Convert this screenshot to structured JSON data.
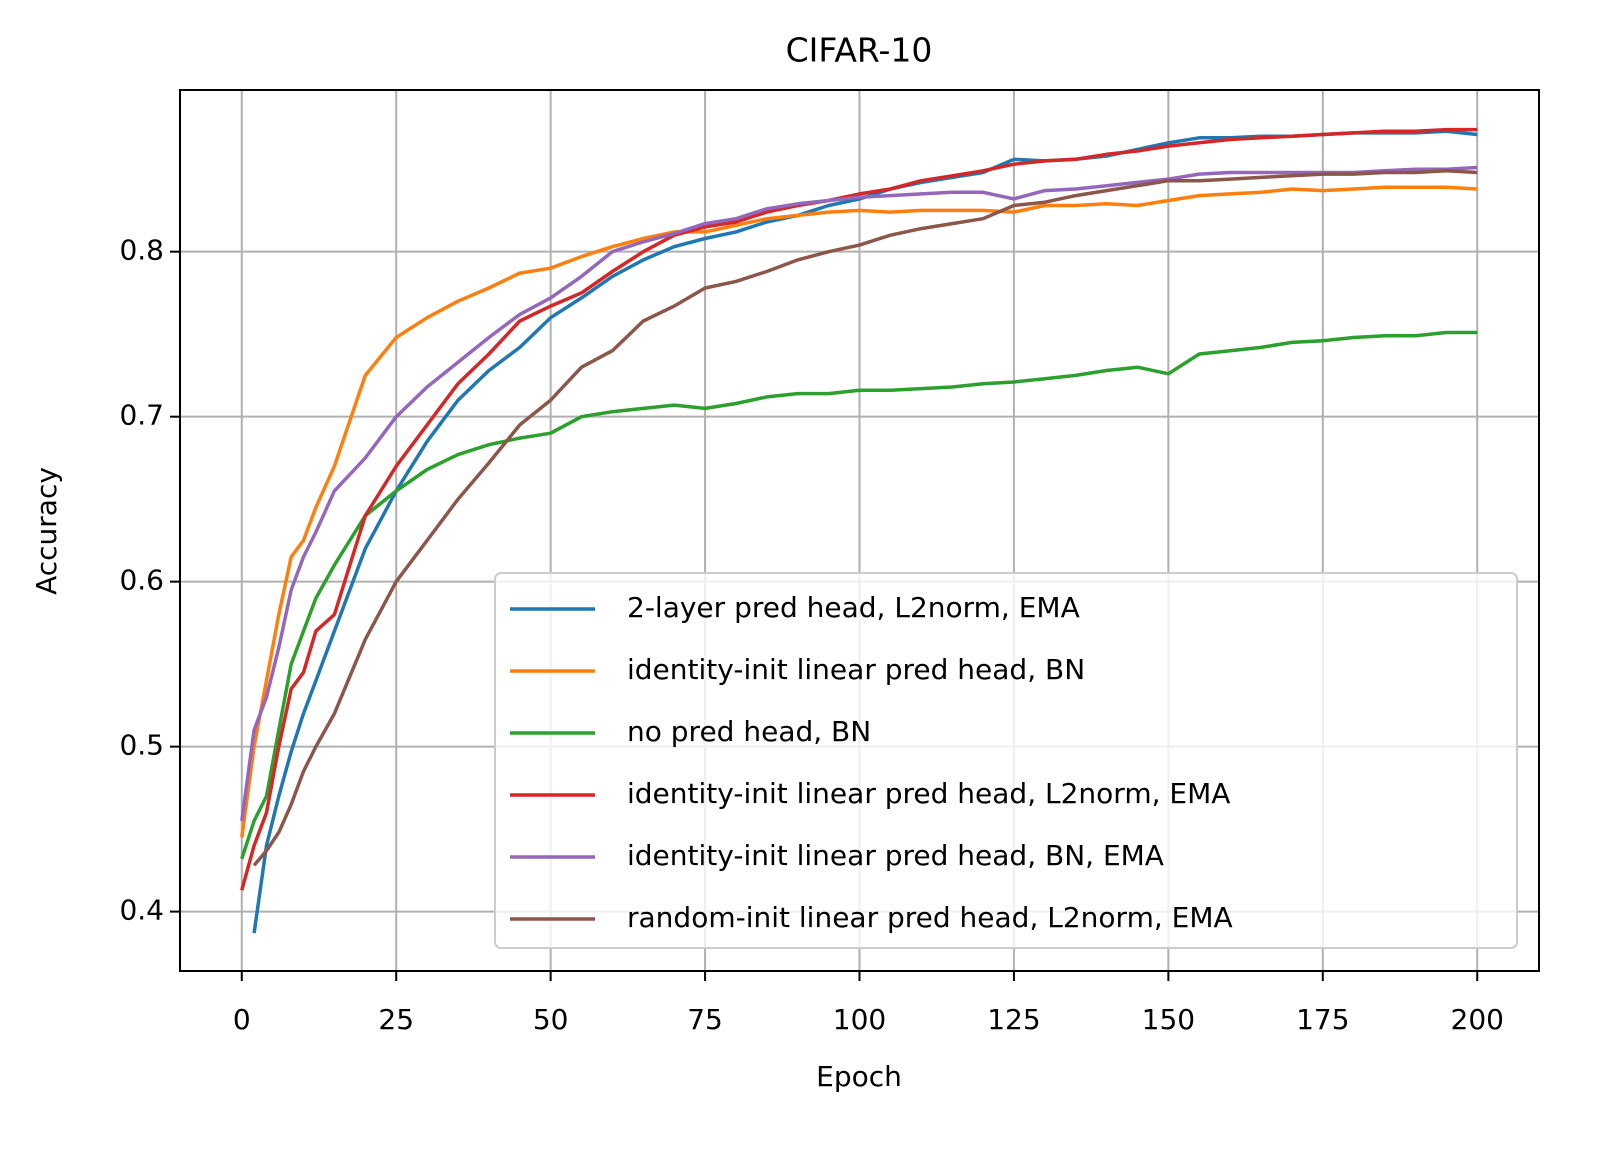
{
  "chart_data": {
    "type": "line",
    "title": "CIFAR-10",
    "x_label": "Epoch",
    "y_label": "Accuracy",
    "x": [
      0,
      2,
      4,
      6,
      8,
      10,
      12,
      15,
      20,
      25,
      30,
      35,
      40,
      45,
      50,
      55,
      60,
      65,
      70,
      75,
      80,
      85,
      90,
      95,
      100,
      105,
      110,
      115,
      120,
      125,
      130,
      135,
      140,
      145,
      150,
      155,
      160,
      165,
      170,
      175,
      180,
      185,
      190,
      195,
      200
    ],
    "series": [
      {
        "name": "2-layer pred head, L2norm, EMA",
        "color": "#1f77b4",
        "values": [
          null,
          0.387,
          0.44,
          0.47,
          0.497,
          0.52,
          0.54,
          0.57,
          0.62,
          0.655,
          0.685,
          0.71,
          0.728,
          0.742,
          0.76,
          0.772,
          0.785,
          0.795,
          0.803,
          0.808,
          0.812,
          0.818,
          0.822,
          0.828,
          0.832,
          0.838,
          0.842,
          0.845,
          0.848,
          0.856,
          0.855,
          0.856,
          0.858,
          0.862,
          0.866,
          0.869,
          0.869,
          0.87,
          0.87,
          0.871,
          0.872,
          0.872,
          0.872,
          0.873,
          0.871
        ]
      },
      {
        "name": "identity-init linear pred head, BN",
        "color": "#ff7f0e",
        "values": [
          0.445,
          0.5,
          0.54,
          0.58,
          0.615,
          0.625,
          0.645,
          0.67,
          0.725,
          0.748,
          0.76,
          0.77,
          0.778,
          0.787,
          0.79,
          0.797,
          0.803,
          0.808,
          0.812,
          0.812,
          0.816,
          0.82,
          0.822,
          0.824,
          0.825,
          0.824,
          0.825,
          0.825,
          0.825,
          0.824,
          0.828,
          0.828,
          0.829,
          0.828,
          0.831,
          0.834,
          0.835,
          0.836,
          0.838,
          0.837,
          0.838,
          0.839,
          0.839,
          0.839,
          0.838
        ]
      },
      {
        "name": "no pred head, BN",
        "color": "#2ca02c",
        "values": [
          0.432,
          0.455,
          0.47,
          0.51,
          0.55,
          0.57,
          0.59,
          0.61,
          0.64,
          0.655,
          0.668,
          0.677,
          0.683,
          0.687,
          0.69,
          0.7,
          0.703,
          0.705,
          0.707,
          0.705,
          0.708,
          0.712,
          0.714,
          0.714,
          0.716,
          0.716,
          0.717,
          0.718,
          0.72,
          0.721,
          0.723,
          0.725,
          0.728,
          0.73,
          0.726,
          0.738,
          0.74,
          0.742,
          0.745,
          0.746,
          0.748,
          0.749,
          0.749,
          0.751,
          0.751
        ]
      },
      {
        "name": "identity-init linear pred head, L2norm, EMA",
        "color": "#d62728",
        "values": [
          0.413,
          0.44,
          0.46,
          0.5,
          0.535,
          0.545,
          0.57,
          0.58,
          0.64,
          0.67,
          0.695,
          0.72,
          0.738,
          0.758,
          0.767,
          0.775,
          0.788,
          0.8,
          0.81,
          0.815,
          0.818,
          0.824,
          0.828,
          0.831,
          0.835,
          0.838,
          0.843,
          0.846,
          0.849,
          0.853,
          0.855,
          0.856,
          0.859,
          0.861,
          0.864,
          0.866,
          0.868,
          0.869,
          0.87,
          0.871,
          0.872,
          0.873,
          0.873,
          0.874,
          0.874
        ]
      },
      {
        "name": "identity-init linear pred head, BN, EMA",
        "color": "#9467bd",
        "values": [
          0.455,
          0.51,
          0.53,
          0.56,
          0.595,
          0.615,
          0.63,
          0.655,
          0.675,
          0.7,
          0.718,
          0.733,
          0.748,
          0.762,
          0.772,
          0.785,
          0.8,
          0.806,
          0.811,
          0.817,
          0.82,
          0.826,
          0.829,
          0.831,
          0.833,
          0.834,
          0.835,
          0.836,
          0.836,
          0.832,
          0.837,
          0.838,
          0.84,
          0.842,
          0.844,
          0.847,
          0.848,
          0.848,
          0.848,
          0.848,
          0.848,
          0.849,
          0.85,
          0.85,
          0.851
        ]
      },
      {
        "name": "random-init linear pred head, L2norm, EMA",
        "color": "#8c564b",
        "values": [
          null,
          0.428,
          0.437,
          0.448,
          0.465,
          0.485,
          0.5,
          0.52,
          0.565,
          0.6,
          0.625,
          0.65,
          0.672,
          0.695,
          0.71,
          0.73,
          0.74,
          0.758,
          0.767,
          0.778,
          0.782,
          0.788,
          0.795,
          0.8,
          0.804,
          0.81,
          0.814,
          0.817,
          0.82,
          0.828,
          0.83,
          0.834,
          0.837,
          0.84,
          0.843,
          0.843,
          0.844,
          0.845,
          0.846,
          0.847,
          0.847,
          0.848,
          0.848,
          0.849,
          0.848
        ]
      }
    ],
    "xlim": [
      -10,
      210
    ],
    "ylim": [
      0.364,
      0.898
    ],
    "xticks": [
      0,
      25,
      50,
      75,
      100,
      125,
      150,
      175,
      200
    ],
    "yticks": [
      0.4,
      0.5,
      0.6,
      0.7,
      0.8
    ],
    "grid": true,
    "legend": "lower right"
  }
}
